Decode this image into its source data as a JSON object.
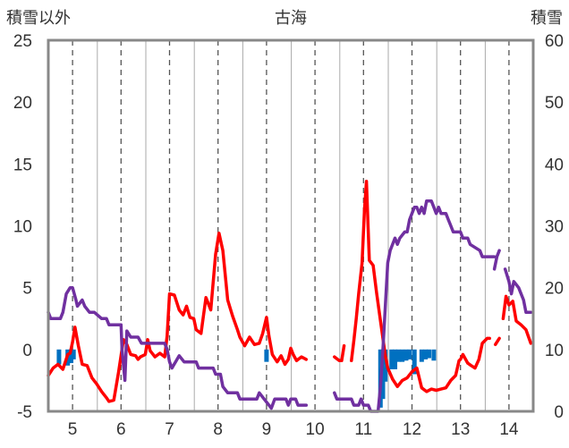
{
  "chart_data": {
    "type": "line",
    "title": "古海",
    "y_left_label": "積雪以外",
    "y_right_label": "積雪",
    "x_ticks": [
      "5",
      "6",
      "7",
      "8",
      "9",
      "10",
      "11",
      "12",
      "13",
      "14"
    ],
    "x_range": [
      4.5,
      14.5
    ],
    "y_left_range": [
      -5,
      25
    ],
    "y_left_ticks": [
      "-5",
      "0",
      "5",
      "10",
      "15",
      "20",
      "25"
    ],
    "y_right_range": [
      0,
      60
    ],
    "y_right_ticks": [
      "0",
      "10",
      "20",
      "30",
      "40",
      "50",
      "60"
    ],
    "grid": "vertical dashed",
    "series": [
      {
        "name": "",
        "axis": "left",
        "color": "#ff0000",
        "segments": [
          [
            [
              4.5,
              -2.1
            ],
            [
              4.6,
              -1.5
            ],
            [
              4.7,
              -1.2
            ],
            [
              4.8,
              -1.6
            ],
            [
              4.9,
              -0.4
            ],
            [
              4.95,
              -0.3
            ],
            [
              5.0,
              0.6
            ],
            [
              5.05,
              1.8
            ],
            [
              5.12,
              0.3
            ],
            [
              5.2,
              -1.2
            ],
            [
              5.3,
              -1.3
            ],
            [
              5.4,
              -2.3
            ],
            [
              5.5,
              -2.8
            ],
            [
              5.6,
              -3.4
            ],
            [
              5.7,
              -3.9
            ],
            [
              5.75,
              -4.2
            ],
            [
              5.85,
              -4.1
            ],
            [
              5.95,
              -1.8
            ],
            [
              6.05,
              0.8
            ],
            [
              6.12,
              0.4
            ],
            [
              6.2,
              -0.4
            ],
            [
              6.3,
              -0.5
            ],
            [
              6.35,
              -0.8
            ],
            [
              6.4,
              -0.6
            ],
            [
              6.5,
              -0.4
            ],
            [
              6.55,
              0.8
            ],
            [
              6.6,
              -0.1
            ],
            [
              6.7,
              -0.6
            ],
            [
              6.8,
              -0.3
            ],
            [
              6.9,
              -0.6
            ],
            [
              6.95,
              1.1
            ],
            [
              7.0,
              4.5
            ],
            [
              7.1,
              4.4
            ],
            [
              7.2,
              3.2
            ],
            [
              7.28,
              2.8
            ],
            [
              7.35,
              3.5
            ],
            [
              7.42,
              2.6
            ],
            [
              7.5,
              2.5
            ],
            [
              7.55,
              1.6
            ],
            [
              7.65,
              1.3
            ],
            [
              7.75,
              4.2
            ],
            [
              7.85,
              3.2
            ],
            [
              7.95,
              7.7
            ],
            [
              8.02,
              9.4
            ],
            [
              8.1,
              8.0
            ],
            [
              8.2,
              4.0
            ],
            [
              8.3,
              2.7
            ],
            [
              8.4,
              1.6
            ],
            [
              8.45,
              1.0
            ],
            [
              8.55,
              0.3
            ],
            [
              8.65,
              1.0
            ],
            [
              8.75,
              0.4
            ],
            [
              8.85,
              0.5
            ],
            [
              8.92,
              1.3
            ],
            [
              9.0,
              2.6
            ],
            [
              9.05,
              1.1
            ],
            [
              9.12,
              -0.4
            ],
            [
              9.22,
              -1.0
            ],
            [
              9.3,
              -0.5
            ],
            [
              9.38,
              -1.2
            ],
            [
              9.45,
              -0.8
            ],
            [
              9.5,
              0.1
            ],
            [
              9.55,
              -0.4
            ],
            [
              9.62,
              -0.9
            ],
            [
              9.72,
              -0.6
            ],
            [
              9.82,
              -0.8
            ]
          ],
          [
            [
              10.4,
              -0.6
            ],
            [
              10.5,
              -0.9
            ],
            [
              10.55,
              -0.9
            ],
            [
              10.6,
              0.3
            ]
          ],
          [
            [
              10.75,
              -0.9
            ],
            [
              10.8,
              0.7
            ],
            [
              10.85,
              2.5
            ],
            [
              10.9,
              4.5
            ],
            [
              10.97,
              7.0
            ],
            [
              11.02,
              11.3
            ],
            [
              11.06,
              13.6
            ],
            [
              11.12,
              7.2
            ],
            [
              11.2,
              6.8
            ],
            [
              11.27,
              4.6
            ],
            [
              11.35,
              2.3
            ],
            [
              11.45,
              -0.5
            ],
            [
              11.5,
              -1.5
            ],
            [
              11.6,
              -2.4
            ],
            [
              11.7,
              -3.0
            ],
            [
              11.8,
              -2.5
            ],
            [
              11.9,
              -2.3
            ],
            [
              12.0,
              -1.8
            ],
            [
              12.1,
              -1.5
            ],
            [
              12.2,
              -3.1
            ],
            [
              12.3,
              -3.4
            ],
            [
              12.4,
              -3.2
            ],
            [
              12.5,
              -3.3
            ],
            [
              12.6,
              -3.2
            ],
            [
              12.7,
              -3.1
            ],
            [
              12.8,
              -2.5
            ],
            [
              12.9,
              -2.1
            ],
            [
              12.97,
              -0.9
            ],
            [
              13.0,
              -0.8
            ],
            [
              13.05,
              -0.4
            ],
            [
              13.15,
              -1.1
            ],
            [
              13.22,
              -1.3
            ],
            [
              13.3,
              -1.5
            ],
            [
              13.38,
              -0.8
            ],
            [
              13.45,
              0.5
            ],
            [
              13.55,
              0.9
            ],
            [
              13.6,
              0.9
            ]
          ],
          [
            [
              13.72,
              0.4
            ],
            [
              13.8,
              0.9
            ]
          ],
          [
            [
              13.88,
              2.5
            ],
            [
              13.94,
              4.3
            ],
            [
              14.0,
              3.6
            ],
            [
              14.08,
              3.9
            ],
            [
              14.15,
              2.3
            ],
            [
              14.25,
              2.0
            ],
            [
              14.35,
              1.6
            ],
            [
              14.45,
              0.5
            ]
          ]
        ]
      },
      {
        "name": "",
        "axis": "right",
        "color": "#7030a0",
        "segments": [
          [
            [
              4.5,
              16.0
            ],
            [
              4.55,
              15.0
            ],
            [
              4.75,
              15.0
            ],
            [
              4.8,
              16.0
            ],
            [
              4.87,
              19.0
            ],
            [
              4.95,
              20.0
            ],
            [
              5.0,
              20.0
            ],
            [
              5.07,
              18.0
            ],
            [
              5.1,
              17.0
            ],
            [
              5.2,
              18.0
            ],
            [
              5.25,
              17.0
            ],
            [
              5.35,
              16.0
            ],
            [
              5.45,
              16.0
            ],
            [
              5.6,
              15.0
            ],
            [
              5.7,
              15.0
            ],
            [
              5.75,
              14.0
            ],
            [
              6.0,
              14.0
            ],
            [
              6.02,
              10.0
            ],
            [
              6.08,
              5.0
            ],
            [
              6.12,
              13.0
            ],
            [
              6.2,
              12.0
            ],
            [
              6.35,
              12.0
            ],
            [
              6.42,
              11.0
            ],
            [
              6.8,
              11.0
            ],
            [
              6.9,
              11.0
            ],
            [
              6.95,
              10.0
            ],
            [
              7.0,
              8.0
            ],
            [
              7.05,
              7.0
            ],
            [
              7.2,
              9.0
            ],
            [
              7.3,
              8.0
            ],
            [
              7.55,
              8.0
            ],
            [
              7.6,
              7.0
            ],
            [
              7.9,
              7.0
            ],
            [
              7.95,
              6.0
            ],
            [
              8.05,
              6.0
            ],
            [
              8.1,
              4.0
            ],
            [
              8.2,
              3.0
            ],
            [
              8.4,
              3.0
            ],
            [
              8.45,
              2.0
            ],
            [
              8.8,
              2.0
            ],
            [
              8.85,
              3.0
            ],
            [
              8.95,
              2.0
            ],
            [
              9.05,
              1.0
            ],
            [
              9.1,
              0.5
            ],
            [
              9.17,
              2.0
            ],
            [
              9.4,
              2.0
            ],
            [
              9.45,
              1.0
            ],
            [
              9.5,
              2.0
            ],
            [
              9.6,
              2.0
            ],
            [
              9.65,
              1.0
            ],
            [
              9.82,
              1.0
            ]
          ],
          [
            [
              10.4,
              3.0
            ],
            [
              10.45,
              2.0
            ],
            [
              10.75,
              2.0
            ],
            [
              10.8,
              1.0
            ],
            [
              10.9,
              1.0
            ],
            [
              10.95,
              2.0
            ],
            [
              11.0,
              1.0
            ],
            [
              11.1,
              1.0
            ],
            [
              11.15,
              0.0
            ],
            [
              11.3,
              0.0
            ],
            [
              11.35,
              4.0
            ],
            [
              11.4,
              10.0
            ],
            [
              11.45,
              17.0
            ],
            [
              11.5,
              24.0
            ],
            [
              11.55,
              26.0
            ],
            [
              11.65,
              28.0
            ],
            [
              11.7,
              27.0
            ],
            [
              11.75,
              28.0
            ],
            [
              11.85,
              29.0
            ],
            [
              11.9,
              29.0
            ],
            [
              11.95,
              31.0
            ],
            [
              12.0,
              32.0
            ],
            [
              12.05,
              33.0
            ],
            [
              12.1,
              33.0
            ],
            [
              12.15,
              32.0
            ],
            [
              12.2,
              33.0
            ],
            [
              12.25,
              32.0
            ],
            [
              12.3,
              34.0
            ],
            [
              12.4,
              34.0
            ],
            [
              12.45,
              33.0
            ],
            [
              12.5,
              32.0
            ],
            [
              12.55,
              33.0
            ],
            [
              12.6,
              32.0
            ],
            [
              12.7,
              32.0
            ],
            [
              12.75,
              31.0
            ],
            [
              12.8,
              30.0
            ],
            [
              12.85,
              29.0
            ],
            [
              13.0,
              29.0
            ],
            [
              13.05,
              28.0
            ],
            [
              13.15,
              28.0
            ],
            [
              13.2,
              27.0
            ],
            [
              13.4,
              26.0
            ],
            [
              13.45,
              25.0
            ],
            [
              13.7,
              25.0
            ]
          ],
          [
            [
              13.7,
              23.0
            ],
            [
              13.75,
              25.0
            ],
            [
              13.8,
              26.0
            ]
          ],
          [
            [
              13.92,
              23.0
            ],
            [
              14.0,
              21.0
            ],
            [
              14.05,
              19.0
            ],
            [
              14.1,
              21.0
            ],
            [
              14.2,
              20.0
            ],
            [
              14.3,
              18.0
            ],
            [
              14.35,
              16.0
            ],
            [
              14.45,
              16.0
            ]
          ]
        ]
      },
      {
        "name": "",
        "axis": "left",
        "type": "bar",
        "color": "#0070c0",
        "x": [
          4.72,
          4.9,
          4.97,
          5.02,
          9.0,
          11.35,
          11.4,
          11.45,
          11.58,
          11.65,
          11.72,
          11.8,
          11.88,
          11.95,
          12.05,
          12.2,
          12.28,
          12.35,
          12.45
        ],
        "values": [
          -1.2,
          -1.3,
          -1.1,
          -0.8,
          -1.0,
          -4.7,
          -4.0,
          -2.6,
          -1.6,
          -1.6,
          -1.0,
          -1.0,
          -0.9,
          -0.8,
          -2.0,
          -1.0,
          -0.8,
          -0.7,
          -0.9
        ]
      }
    ]
  }
}
